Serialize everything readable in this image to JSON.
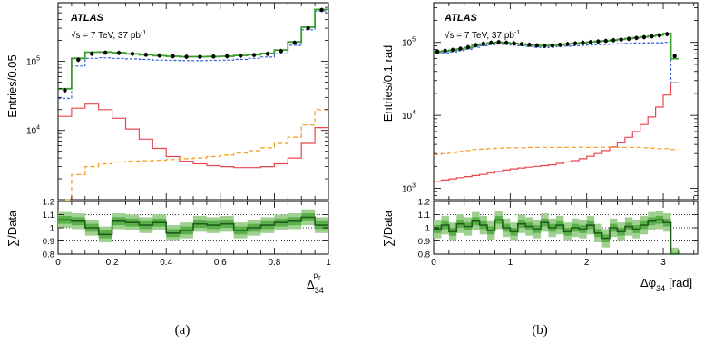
{
  "caption_a": "(a)",
  "caption_b": "(b)",
  "chart_data": [
    {
      "type": "line",
      "panel": "a",
      "experiment": "ATLAS",
      "energy_text": "√s = 7 TeV, 37 pb",
      "lumi_sup": "-1",
      "ylabel": "Entries/0.05",
      "xlabel_main": "Δ",
      "xlabel_sub": "34",
      "xlabel_sup": "p",
      "xlabel_supsub": "T",
      "xlim": [
        0,
        1
      ],
      "ylim": [
        1000,
        700000
      ],
      "yscale": "log",
      "x_ticks": [
        "0",
        "0.2",
        "0.4",
        "0.6",
        "0.8",
        "1"
      ],
      "y_ticks": [
        {
          "value": 10000,
          "base": "10",
          "exp": "4"
        },
        {
          "value": 100000,
          "base": "10",
          "exp": "5"
        }
      ],
      "bin_edges": [
        0,
        0.05,
        0.1,
        0.15,
        0.2,
        0.25,
        0.3,
        0.35,
        0.4,
        0.45,
        0.5,
        0.55,
        0.6,
        0.65,
        0.7,
        0.75,
        0.8,
        0.85,
        0.9,
        0.95,
        1.0
      ],
      "series": [
        {
          "role": "data",
          "color": "#000000",
          "values": [
            38000,
            105000,
            128000,
            133000,
            132000,
            128000,
            124000,
            121000,
            118000,
            116000,
            116000,
            117000,
            118000,
            120000,
            123000,
            128000,
            140000,
            185000,
            300000,
            550000
          ]
        },
        {
          "role": "total",
          "color": "#3aa02b",
          "values": [
            40000,
            110000,
            135000,
            136000,
            133000,
            128000,
            124000,
            120000,
            118000,
            116000,
            116000,
            117000,
            118000,
            121000,
            124000,
            130000,
            145000,
            190000,
            310000,
            560000
          ]
        },
        {
          "role": "component-blue",
          "color": "#2f5fd6",
          "dash": "3,2",
          "values": [
            29000,
            85000,
            110000,
            112000,
            110000,
            108000,
            106000,
            104000,
            103000,
            102000,
            102000,
            103000,
            104000,
            106000,
            110000,
            115000,
            128000,
            170000,
            285000,
            530000
          ]
        },
        {
          "role": "component-red",
          "color": "#e8474f",
          "values": [
            16000,
            21000,
            24000,
            20000,
            15000,
            10500,
            7500,
            5500,
            4200,
            3600,
            3300,
            3100,
            3000,
            2900,
            2900,
            3000,
            3300,
            4000,
            6500,
            11000
          ]
        },
        {
          "role": "component-orange",
          "color": "#f29a1c",
          "dash": "5,3",
          "values": [
            900,
            2300,
            3000,
            3300,
            3500,
            3600,
            3650,
            3700,
            3800,
            3900,
            4000,
            4200,
            4400,
            4700,
            5100,
            5600,
            6500,
            8000,
            12000,
            20000
          ]
        }
      ],
      "ratio": {
        "ylabel": "∑/Data",
        "ylim": [
          0.8,
          1.2
        ],
        "y_ticks": [
          "0.8",
          "0.9",
          "1",
          "1.1",
          "1.2"
        ],
        "values": [
          1.06,
          1.05,
          1.0,
          0.95,
          1.05,
          1.04,
          1.02,
          1.04,
          0.96,
          0.98,
          1.03,
          1.02,
          1.03,
          0.98,
          1.0,
          1.02,
          1.04,
          1.05,
          1.08,
          1.02
        ],
        "unc_inner": 0.03,
        "unc_outer": 0.06
      }
    },
    {
      "type": "line",
      "panel": "b",
      "experiment": "ATLAS",
      "energy_text": "√s = 7 TeV, 37 pb",
      "lumi_sup": "-1",
      "ylabel": "Entries/0.1 rad",
      "xlabel_main": "Δφ",
      "xlabel_sub": "34",
      "xlabel_unit": "[rad]",
      "xlim": [
        0,
        3.45
      ],
      "ylim": [
        700,
        350000
      ],
      "yscale": "log",
      "x_ticks": [
        "0",
        "1",
        "2",
        "3"
      ],
      "y_ticks": [
        {
          "value": 1000,
          "base": "10",
          "exp": "3"
        },
        {
          "value": 10000,
          "base": "10",
          "exp": "4"
        },
        {
          "value": 100000,
          "base": "10",
          "exp": "5"
        }
      ],
      "bin_edges": [
        0,
        0.1,
        0.2,
        0.3,
        0.4,
        0.5,
        0.6,
        0.7,
        0.8,
        0.9,
        1.0,
        1.1,
        1.2,
        1.3,
        1.4,
        1.5,
        1.6,
        1.7,
        1.8,
        1.9,
        2.0,
        2.1,
        2.2,
        2.3,
        2.4,
        2.5,
        2.6,
        2.7,
        2.8,
        2.9,
        3.0,
        3.1,
        3.2
      ],
      "series": [
        {
          "role": "data",
          "color": "#000000",
          "values": [
            75000,
            77000,
            79000,
            82000,
            86000,
            92000,
            96000,
            99000,
            101000,
            99000,
            97000,
            95000,
            93000,
            91000,
            90000,
            91000,
            93000,
            95000,
            97000,
            99000,
            101000,
            103000,
            105000,
            107000,
            109000,
            112000,
            115000,
            118000,
            121000,
            125000,
            130000,
            65000
          ]
        },
        {
          "role": "total",
          "color": "#3aa02b",
          "values": [
            74000,
            76000,
            78000,
            81000,
            85000,
            91000,
            95000,
            98000,
            100000,
            99000,
            97000,
            95000,
            93000,
            91000,
            90000,
            91000,
            93000,
            95000,
            97000,
            99000,
            101000,
            103000,
            105000,
            107000,
            110000,
            113000,
            116000,
            119000,
            122000,
            126000,
            132000,
            60000
          ]
        },
        {
          "role": "component-blue",
          "color": "#2f5fd6",
          "dash": "3,2",
          "values": [
            70000,
            72000,
            74000,
            77000,
            81000,
            86000,
            90000,
            93000,
            95000,
            94000,
            92000,
            90000,
            88000,
            86000,
            85000,
            86000,
            88000,
            89000,
            90000,
            91000,
            92000,
            93000,
            94000,
            95000,
            96000,
            97000,
            98000,
            98000,
            99000,
            99000,
            100000,
            28000
          ]
        },
        {
          "role": "component-red",
          "color": "#e8474f",
          "values": [
            1250,
            1300,
            1350,
            1400,
            1450,
            1500,
            1550,
            1620,
            1700,
            1780,
            1850,
            1900,
            1950,
            2000,
            2050,
            2100,
            2200,
            2300,
            2400,
            2550,
            2750,
            3000,
            3300,
            3700,
            4200,
            5000,
            6000,
            7500,
            9500,
            13000,
            19000,
            28000
          ]
        },
        {
          "role": "component-orange",
          "color": "#f29a1c",
          "dash": "5,3",
          "values": [
            2900,
            3000,
            3100,
            3200,
            3300,
            3400,
            3450,
            3500,
            3550,
            3600,
            3600,
            3600,
            3650,
            3650,
            3650,
            3650,
            3650,
            3650,
            3650,
            3650,
            3650,
            3650,
            3650,
            3650,
            3650,
            3650,
            3650,
            3600,
            3550,
            3500,
            3500,
            3400
          ]
        }
      ],
      "ratio": {
        "ylabel": "∑/Data",
        "ylim": [
          0.8,
          1.2
        ],
        "y_ticks": [
          "0.8",
          "0.9",
          "1",
          "1.1",
          "1.2"
        ],
        "values": [
          0.99,
          1.02,
          0.97,
          1.03,
          1.01,
          1.05,
          1.02,
          0.98,
          1.06,
          1.0,
          0.97,
          1.03,
          1.01,
          0.99,
          1.04,
          1.0,
          1.02,
          0.97,
          1.0,
          0.99,
          1.02,
          0.96,
          0.92,
          1.0,
          0.97,
          1.01,
          0.99,
          1.02,
          1.05,
          1.06,
          1.04,
          0.78
        ],
        "unc_inner": 0.03,
        "unc_outer": 0.07
      }
    }
  ]
}
